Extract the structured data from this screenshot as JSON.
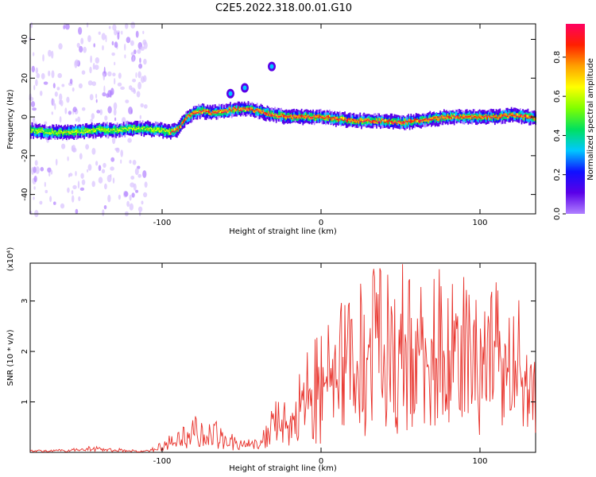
{
  "title": "C2E5.2022.318.00.01.G10",
  "chart_data": [
    {
      "type": "heatmap",
      "title": "C2E5.2022.318.00.01.G10",
      "xlabel": "Height of straight line (km)",
      "ylabel": "Frequency (Hz)",
      "xlim": [
        -183,
        135
      ],
      "ylim": [
        -50,
        48
      ],
      "xticks": [
        -100,
        0,
        100
      ],
      "yticks": [
        -40,
        -20,
        0,
        20,
        40
      ],
      "colorbar": {
        "label": "Normalized spectral amplitude",
        "range": [
          0,
          0.97
        ],
        "ticks": [
          0.0,
          0.2,
          0.4,
          0.6,
          0.8
        ],
        "colormap": [
          "#ffffff",
          "#b080ff",
          "#5a00e8",
          "#1010ff",
          "#00c8ff",
          "#00e060",
          "#80ff00",
          "#ffff00",
          "#ffa000",
          "#ff2000",
          "#ff0060"
        ]
      },
      "ridge": {
        "x": [
          -183,
          -170,
          -160,
          -150,
          -140,
          -130,
          -120,
          -110,
          -100,
          -95,
          -90,
          -85,
          -80,
          -75,
          -70,
          -65,
          -60,
          -55,
          -50,
          -45,
          -40,
          -35,
          -30,
          -20,
          -10,
          0,
          10,
          20,
          30,
          40,
          50,
          60,
          70,
          80,
          90,
          100,
          110,
          120,
          130,
          135
        ],
        "y": [
          -7,
          -8,
          -8,
          -7.5,
          -6.5,
          -7,
          -6,
          -6,
          -7,
          -8,
          -6,
          0,
          2,
          3,
          2,
          2.5,
          3,
          4,
          4,
          4,
          3,
          2,
          1,
          0,
          0,
          0,
          -1,
          -2,
          -2,
          -2,
          -3,
          -2,
          -1,
          0,
          0,
          0,
          0,
          1,
          0,
          -1
        ]
      },
      "features": [
        {
          "x": -57,
          "y": 12
        },
        {
          "x": -48,
          "y": 15
        },
        {
          "x": -31,
          "y": 26
        }
      ]
    },
    {
      "type": "line",
      "xlabel": "Height of straight line (km)",
      "ylabel": "SNR (10 * v/v)",
      "y_multiplier": "(x10⁴)",
      "xlim": [
        -183,
        135
      ],
      "ylim": [
        0,
        3.75
      ],
      "xticks": [
        -100,
        0,
        100
      ],
      "yticks": [
        1,
        2,
        3
      ],
      "series": [
        {
          "color": "#e8312a",
          "x": [
            -183,
            -170,
            -160,
            -150,
            -140,
            -130,
            -120,
            -110,
            -105,
            -100,
            -95,
            -90,
            -85,
            -80,
            -75,
            -70,
            -65,
            -60,
            -55,
            -50,
            -45,
            -40,
            -35,
            -30,
            -25,
            -20,
            -15,
            -10,
            -5,
            0,
            5,
            10,
            15,
            20,
            25,
            30,
            35,
            40,
            45,
            50,
            55,
            60,
            65,
            70,
            75,
            80,
            85,
            90,
            95,
            100,
            105,
            110,
            115,
            120,
            125,
            130,
            135
          ],
          "y": [
            0.03,
            0.04,
            0.05,
            0.07,
            0.1,
            0.06,
            0.04,
            0.05,
            0.08,
            0.15,
            0.25,
            0.3,
            0.4,
            0.55,
            0.5,
            0.45,
            0.4,
            0.25,
            0.25,
            0.2,
            0.2,
            0.18,
            0.45,
            0.9,
            0.8,
            0.7,
            1.0,
            1.3,
            1.5,
            1.6,
            1.8,
            2.0,
            2.1,
            2.1,
            2.3,
            2.3,
            2.5,
            2.4,
            2.6,
            2.6,
            2.5,
            2.7,
            2.6,
            2.5,
            2.6,
            2.4,
            2.5,
            2.4,
            2.3,
            2.2,
            2.2,
            2.3,
            2.0,
            2.1,
            2.0,
            1.9,
            1.9
          ]
        }
      ]
    }
  ]
}
